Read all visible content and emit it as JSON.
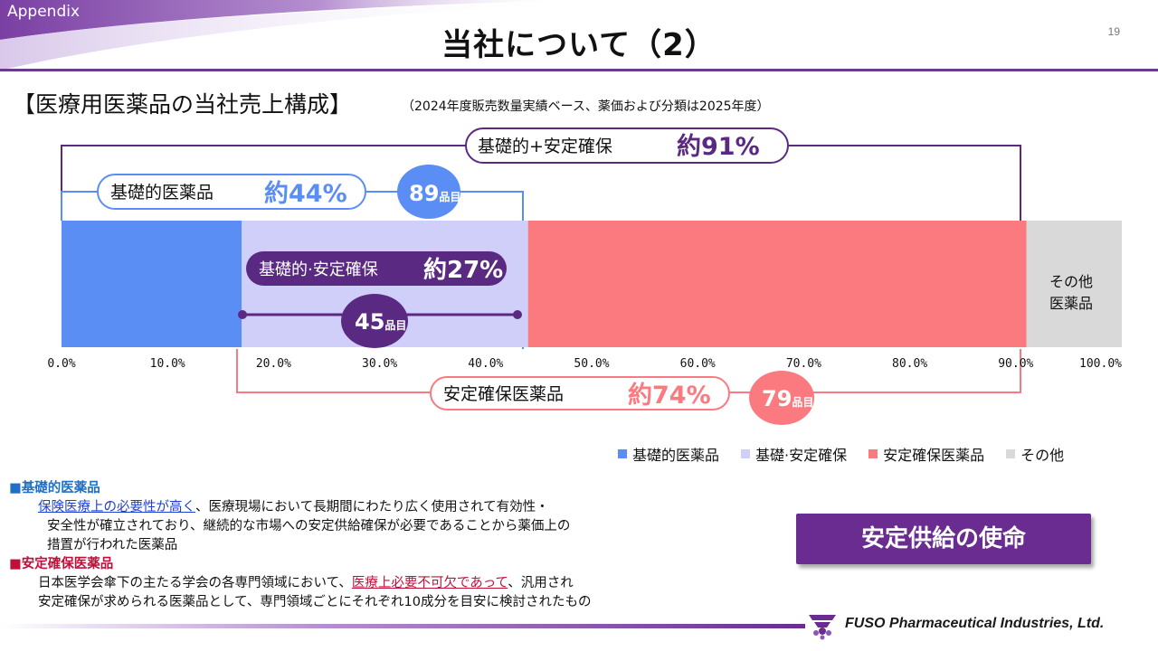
{
  "header": {
    "appendix_label": "Appendix",
    "title": "当社について（2）",
    "page_number": "19"
  },
  "section": {
    "heading": "【医療用医薬品の当社売上構成】",
    "note": "（2024年度販売数量実績ベース、薬価および分類は2025年度）"
  },
  "brackets": {
    "combined": {
      "label": "基礎的+安定確保",
      "value": "約91%"
    },
    "basic": {
      "label": "基礎的医薬品",
      "value": "約44%",
      "count": "89",
      "count_unit": "品目"
    },
    "overlap": {
      "label": "基礎的·安定確保",
      "value": "約27%",
      "count": "45",
      "count_unit": "品目"
    },
    "stable": {
      "label": "安定確保医薬品",
      "value": "約74%",
      "count": "79",
      "count_unit": "品目"
    }
  },
  "other_label_line1": "その他",
  "other_label_line2": "医薬品",
  "chart_data": {
    "type": "bar",
    "orientation": "horizontal-stacked",
    "categories": [
      "基礎的医薬品",
      "基礎・安定確保",
      "安定確保医薬品",
      "その他"
    ],
    "values": [
      17,
      27,
      47,
      9
    ],
    "xlim": [
      0,
      100
    ],
    "x_ticks": [
      "0.0%",
      "10.0%",
      "20.0%",
      "30.0%",
      "40.0%",
      "50.0%",
      "60.0%",
      "70.0%",
      "80.0%",
      "90.0%",
      "100.0%"
    ],
    "series_colors": [
      "#5b8ef5",
      "#cfcffa",
      "#fb7a80",
      "#d9d9d9"
    ],
    "legend_position": "bottom-right",
    "grid": false
  },
  "legend": [
    {
      "label": "基礎的医薬品",
      "color": "#5b8ef5"
    },
    {
      "label": "基礎·安定確保",
      "color": "#cfcffa"
    },
    {
      "label": "安定確保医薬品",
      "color": "#fb7a80"
    },
    {
      "label": "その他",
      "color": "#d9d9d9"
    }
  ],
  "notes": {
    "basic_head": "■基礎的医薬品",
    "basic_em": "保険医療上の必要性が高く",
    "basic_line1_rest": "、医療現場において長期間にわたり広く使用されて有効性・",
    "basic_line2": "安全性が確立されており、継続的な市場への安定供給確保が必要であることから薬価上の",
    "basic_line3": "措置が行われた医薬品",
    "stable_head": "■安定確保医薬品",
    "stable_line1_pre": "日本医学会傘下の主たる学会の各専門領域において、",
    "stable_em": "医療上必要不可欠であって",
    "stable_line1_post": "、汎用され",
    "stable_line2": "安定確保が求められる医薬品として、専門領域ごとにそれぞれ10成分を目安に検討されたもの"
  },
  "mission_label": "安定供給の使命",
  "footer": {
    "company": "FUSO Pharmaceutical Industries, Ltd."
  },
  "colors": {
    "purple": "#6a3a8f",
    "dark_purple": "#5a2a82",
    "blue": "#5b8ef5",
    "lavender": "#cfcffa",
    "pink": "#fb7a80",
    "gray": "#d9d9d9"
  }
}
